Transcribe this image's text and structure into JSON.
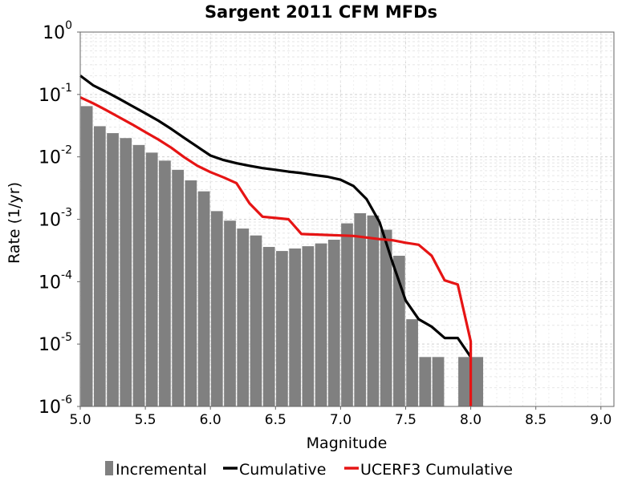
{
  "chart_data": {
    "type": "bar",
    "title": "Sargent 2011 CFM MFDs",
    "xlabel": "Magnitude",
    "ylabel": "Rate (1/yr)",
    "xlim": [
      5.0,
      9.1
    ],
    "ylim": [
      1e-06,
      1
    ],
    "y_scale": "log",
    "grid": true,
    "legend_position": "bottom",
    "x_ticks": [
      "5.0",
      "5.5",
      "6.0",
      "6.5",
      "7.0",
      "7.5",
      "8.0",
      "8.5",
      "9.0"
    ],
    "y_ticks": [
      {
        "base": "10",
        "exp": "0"
      },
      {
        "base": "10",
        "exp": "-1"
      },
      {
        "base": "10",
        "exp": "-2"
      },
      {
        "base": "10",
        "exp": "-3"
      },
      {
        "base": "10",
        "exp": "-4"
      },
      {
        "base": "10",
        "exp": "-5"
      },
      {
        "base": "10",
        "exp": "-6"
      }
    ],
    "series": [
      {
        "name": "Incremental",
        "kind": "bar",
        "color": "#808080",
        "x": [
          5.05,
          5.15,
          5.25,
          5.35,
          5.45,
          5.55,
          5.65,
          5.75,
          5.85,
          5.95,
          6.05,
          6.15,
          6.25,
          6.35,
          6.45,
          6.55,
          6.65,
          6.75,
          6.85,
          6.95,
          7.05,
          7.15,
          7.25,
          7.35,
          7.45,
          7.55,
          7.65,
          7.75,
          7.95,
          8.05
        ],
        "values": [
          0.065,
          0.031,
          0.024,
          0.02,
          0.0155,
          0.0117,
          0.0087,
          0.0062,
          0.0042,
          0.0028,
          0.00135,
          0.00095,
          0.00071,
          0.00055,
          0.00036,
          0.00031,
          0.00034,
          0.00037,
          0.00041,
          0.00047,
          0.00086,
          0.00125,
          0.00115,
          0.00068,
          0.00026,
          2.5e-05,
          6.2e-06,
          6.2e-06,
          6.2e-06,
          6.2e-06
        ]
      },
      {
        "name": "Cumulative",
        "kind": "line",
        "color": "#000000",
        "x": [
          5.0,
          5.1,
          5.2,
          5.3,
          5.4,
          5.5,
          5.6,
          5.7,
          5.8,
          5.9,
          6.0,
          6.1,
          6.2,
          6.3,
          6.4,
          6.5,
          6.6,
          6.7,
          6.8,
          6.9,
          7.0,
          7.1,
          7.2,
          7.3,
          7.4,
          7.5,
          7.6,
          7.7,
          7.8,
          7.9,
          8.0
        ],
        "values": [
          0.2,
          0.14,
          0.11,
          0.085,
          0.065,
          0.05,
          0.038,
          0.028,
          0.02,
          0.0145,
          0.0105,
          0.0089,
          0.0079,
          0.0072,
          0.0066,
          0.0062,
          0.0058,
          0.0055,
          0.0051,
          0.0048,
          0.0043,
          0.0034,
          0.0021,
          0.0009,
          0.0002,
          5e-05,
          2.5e-05,
          1.9e-05,
          1.25e-05,
          1.25e-05,
          6.2e-06
        ]
      },
      {
        "name": "UCERF3 Cumulative",
        "kind": "line",
        "color": "#e61414",
        "x": [
          5.0,
          5.1,
          5.2,
          5.3,
          5.4,
          5.5,
          5.6,
          5.7,
          5.8,
          5.9,
          6.0,
          6.1,
          6.2,
          6.3,
          6.4,
          6.5,
          6.6,
          6.7,
          6.8,
          6.9,
          7.0,
          7.1,
          7.2,
          7.3,
          7.4,
          7.5,
          7.6,
          7.7,
          7.8,
          7.9,
          8.0,
          8.0
        ],
        "values": [
          0.09,
          0.072,
          0.056,
          0.043,
          0.033,
          0.025,
          0.019,
          0.014,
          0.0098,
          0.0072,
          0.0057,
          0.0047,
          0.0038,
          0.0018,
          0.0011,
          0.00105,
          0.001,
          0.00058,
          0.00057,
          0.00056,
          0.00055,
          0.00054,
          0.00051,
          0.00048,
          0.00046,
          0.00042,
          0.00039,
          0.00026,
          0.000105,
          9e-05,
          1.1e-05,
          1e-06
        ]
      }
    ]
  }
}
